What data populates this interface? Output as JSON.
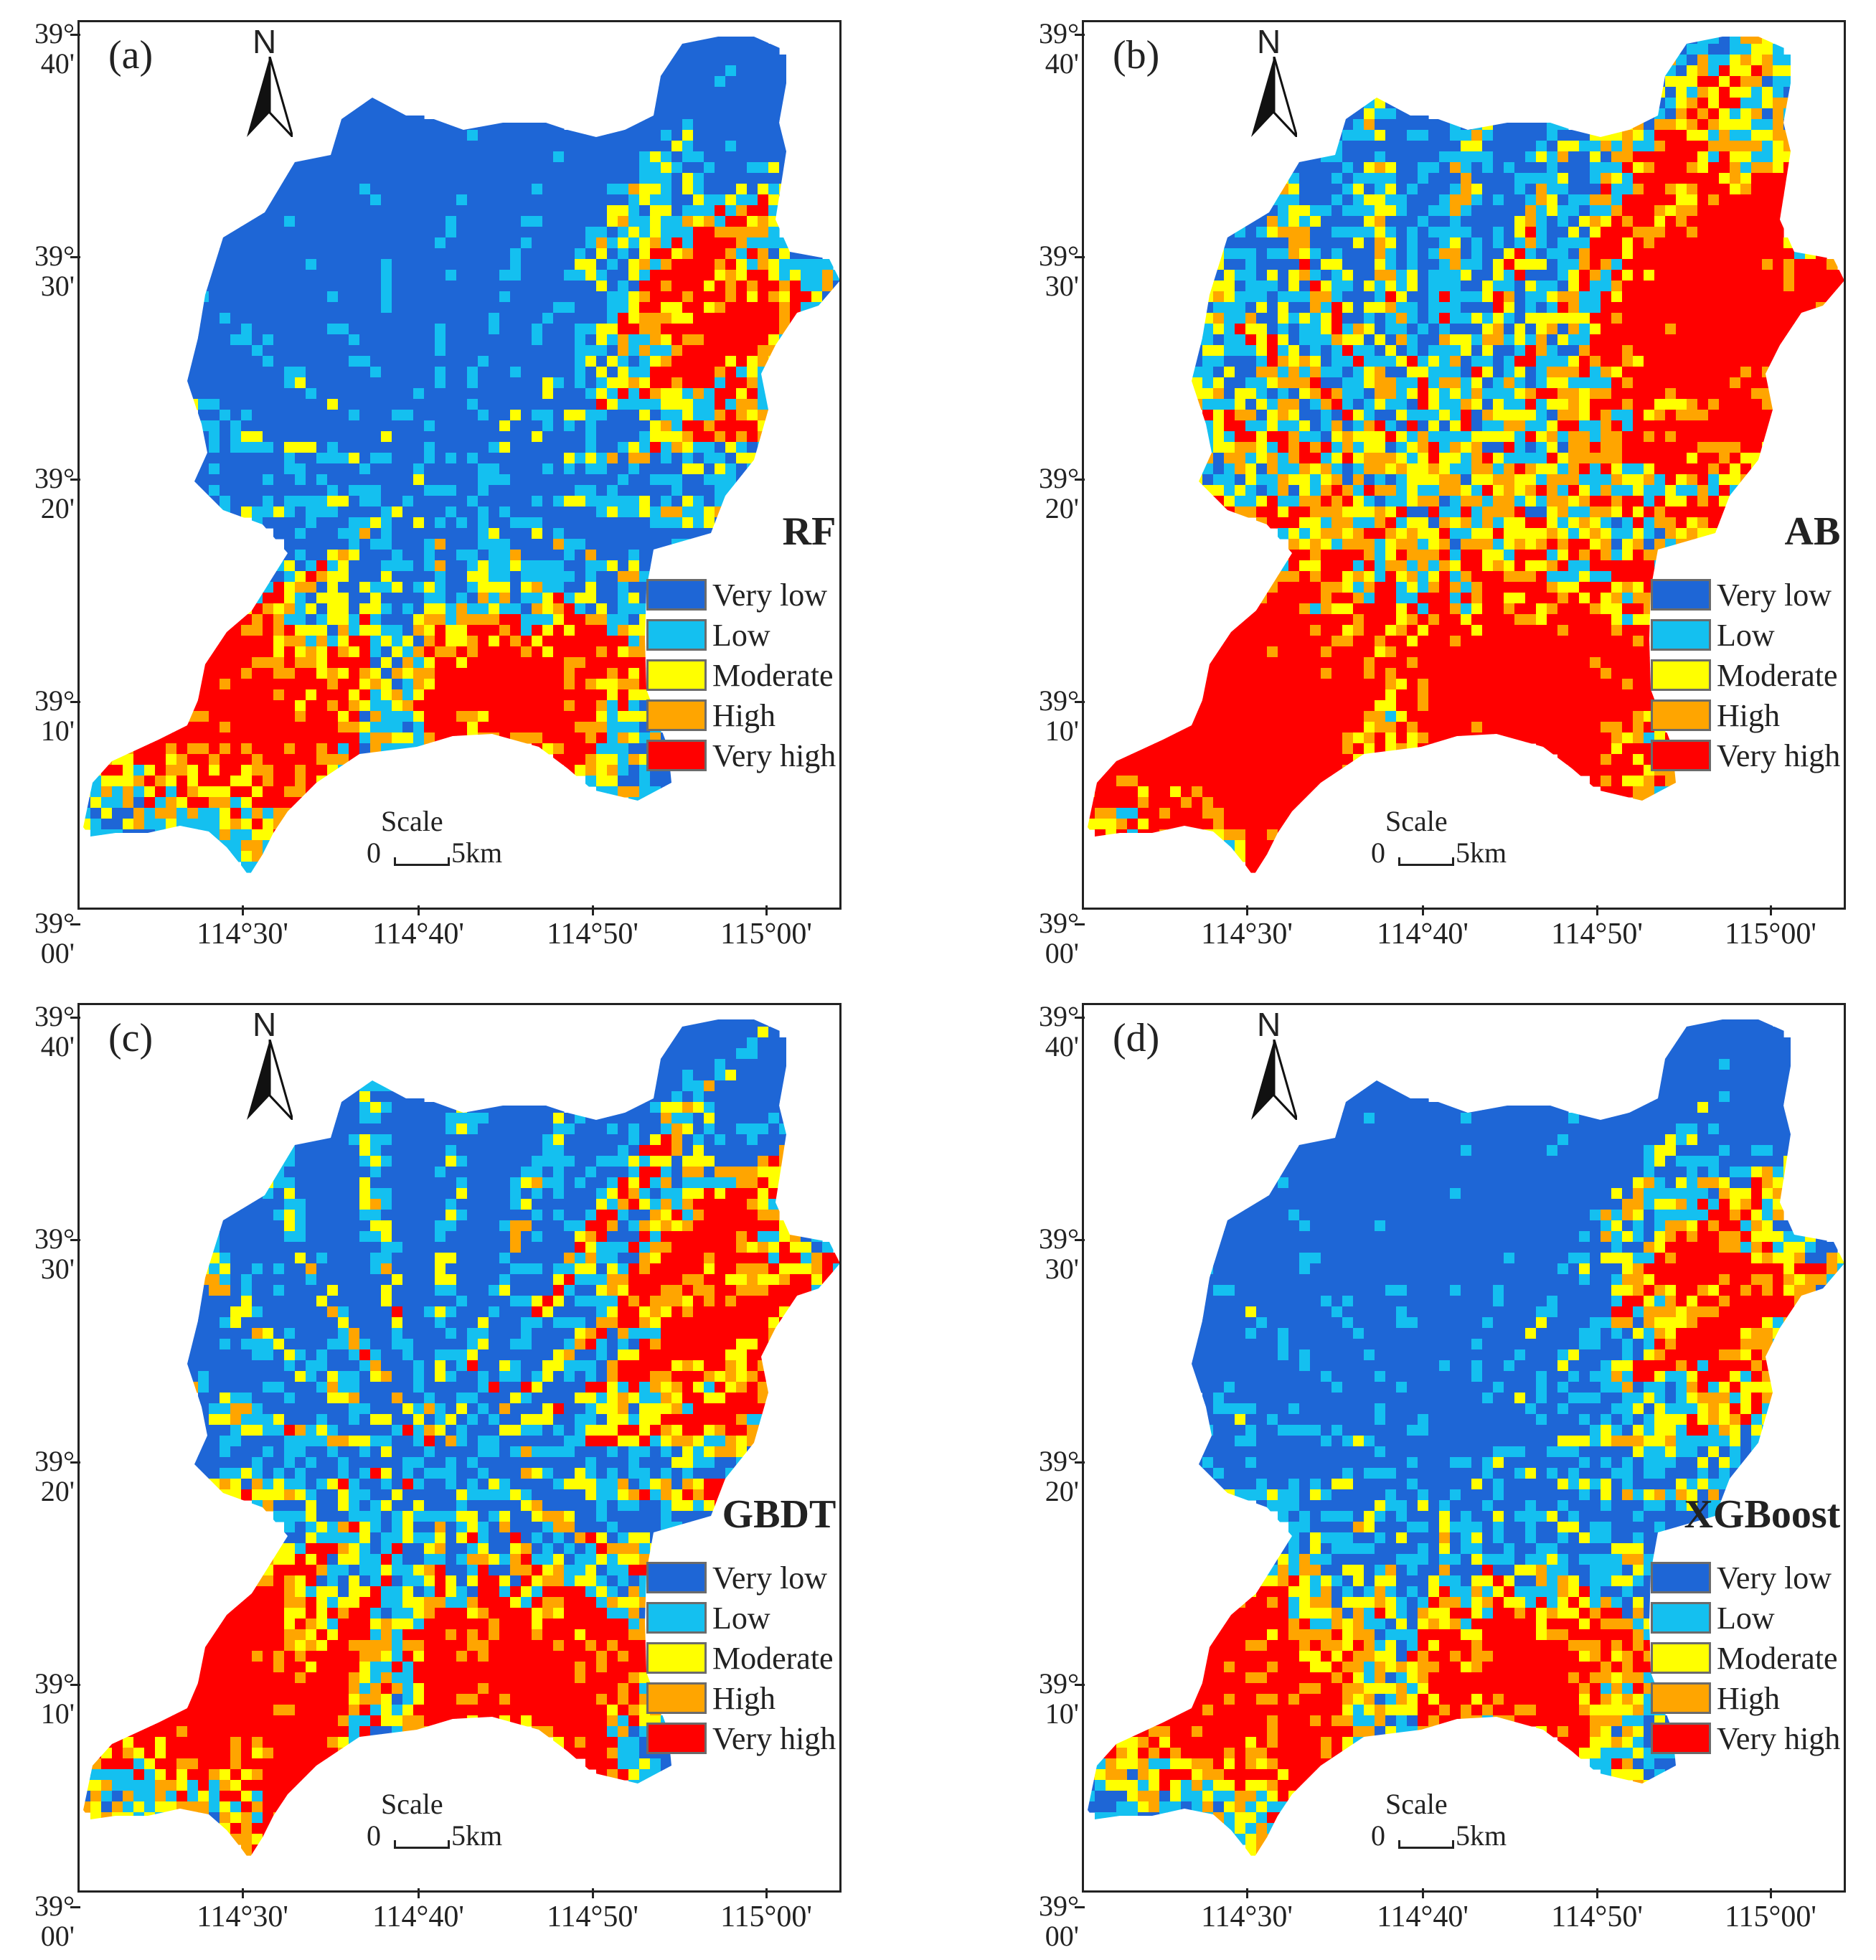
{
  "legend_classes": [
    {
      "label": "Very low",
      "color": "#1e66d6"
    },
    {
      "label": "Low",
      "color": "#14c0f0"
    },
    {
      "label": "Moderate",
      "color": "#ffff00"
    },
    {
      "label": "High",
      "color": "#ffa500"
    },
    {
      "label": "Very high",
      "color": "#ff0000"
    }
  ],
  "north_label": "N",
  "scale": {
    "title": "Scale",
    "start": "0",
    "end": "5km"
  },
  "lat_labels": [
    {
      "deg": "39°",
      "min": "40'"
    },
    {
      "deg": "39°",
      "min": "30'"
    },
    {
      "deg": "39°",
      "min": "20'"
    },
    {
      "deg": "39°",
      "min": "10'"
    },
    {
      "deg": "39°",
      "min": "00'"
    }
  ],
  "lon_labels": [
    "114°30'",
    "114°40'",
    "114°50'",
    "115°00'"
  ],
  "panels": [
    {
      "id": "a",
      "label": "(a)",
      "model": "RF",
      "dominant": "low-north"
    },
    {
      "id": "b",
      "label": "(b)",
      "model": "AB",
      "dominant": "high"
    },
    {
      "id": "c",
      "label": "(c)",
      "model": "GBDT",
      "dominant": "mixed"
    },
    {
      "id": "d",
      "label": "(d)",
      "model": "XGBoost",
      "dominant": "low-north"
    }
  ]
}
